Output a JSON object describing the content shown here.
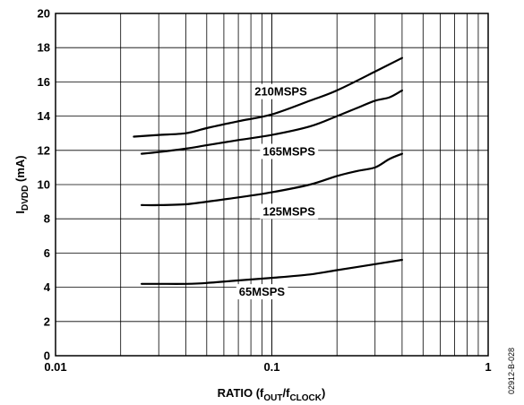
{
  "chart_data": {
    "type": "line",
    "xlabel": {
      "main": "RATIO (f",
      "sub1": "OUT",
      "mid": "/f",
      "sub2": "CLOCK",
      "end": ")"
    },
    "ylabel": {
      "main": "I",
      "sub": "DVDD",
      "end": " (mA)"
    },
    "x_scale": "log",
    "xlim": [
      0.01,
      1
    ],
    "ylim": [
      0,
      20
    ],
    "x_ticks": [
      {
        "value": 0.01,
        "label": "0.01"
      },
      {
        "value": 0.1,
        "label": "0.1"
      },
      {
        "value": 1,
        "label": "1"
      }
    ],
    "y_ticks": [
      {
        "value": 0,
        "label": "0"
      },
      {
        "value": 2,
        "label": "2"
      },
      {
        "value": 4,
        "label": "4"
      },
      {
        "value": 6,
        "label": "6"
      },
      {
        "value": 8,
        "label": "8"
      },
      {
        "value": 10,
        "label": "10"
      },
      {
        "value": 12,
        "label": "12"
      },
      {
        "value": 14,
        "label": "14"
      },
      {
        "value": 16,
        "label": "16"
      },
      {
        "value": 18,
        "label": "18"
      },
      {
        "value": 20,
        "label": "20"
      }
    ],
    "grid": true,
    "series": [
      {
        "name": "210MSPS",
        "label_at": {
          "x": 0.11,
          "y": 15.2
        },
        "x": [
          0.023,
          0.03,
          0.04,
          0.05,
          0.07,
          0.1,
          0.15,
          0.2,
          0.3,
          0.4
        ],
        "values": [
          12.8,
          12.9,
          13.0,
          13.3,
          13.7,
          14.1,
          14.9,
          15.5,
          16.6,
          17.4
        ]
      },
      {
        "name": "165MSPS",
        "label_at": {
          "x": 0.12,
          "y": 11.7
        },
        "x": [
          0.025,
          0.03,
          0.04,
          0.05,
          0.07,
          0.1,
          0.15,
          0.2,
          0.25,
          0.3,
          0.35,
          0.4
        ],
        "values": [
          11.8,
          11.9,
          12.1,
          12.3,
          12.6,
          12.9,
          13.4,
          14.0,
          14.5,
          14.9,
          15.1,
          15.5
        ]
      },
      {
        "name": "125MSPS",
        "label_at": {
          "x": 0.12,
          "y": 8.2
        },
        "x": [
          0.025,
          0.03,
          0.04,
          0.05,
          0.07,
          0.1,
          0.15,
          0.2,
          0.25,
          0.3,
          0.35,
          0.4
        ],
        "values": [
          8.8,
          8.8,
          8.85,
          9.0,
          9.25,
          9.55,
          10.0,
          10.5,
          10.8,
          11.0,
          11.5,
          11.8
        ]
      },
      {
        "name": "65MSPS",
        "label_at": {
          "x": 0.09,
          "y": 3.5
        },
        "x": [
          0.025,
          0.03,
          0.04,
          0.05,
          0.07,
          0.1,
          0.15,
          0.2,
          0.3,
          0.4
        ],
        "values": [
          4.2,
          4.2,
          4.2,
          4.25,
          4.4,
          4.55,
          4.75,
          5.0,
          5.35,
          5.6
        ]
      }
    ],
    "figure_id": "02912-B-028"
  }
}
